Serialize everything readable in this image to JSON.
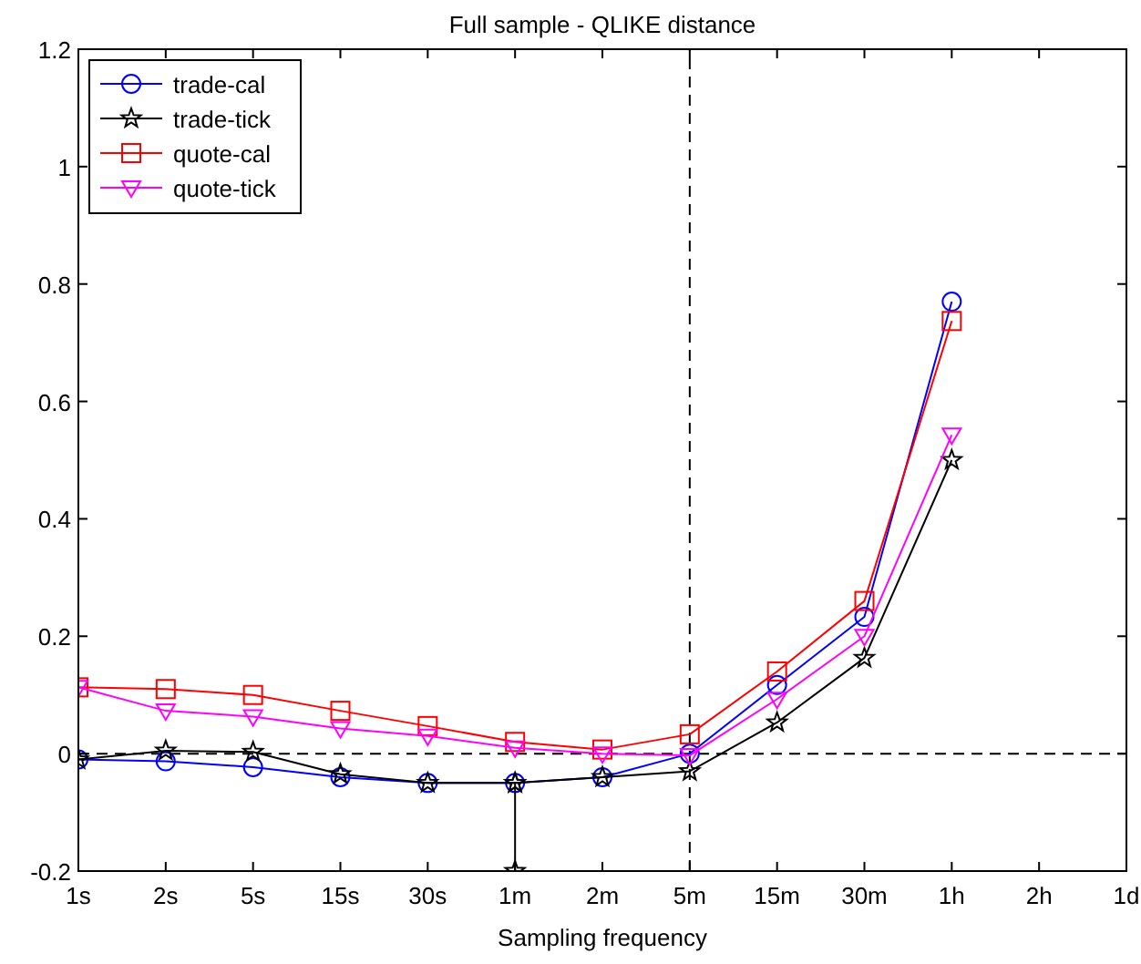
{
  "chart_data": {
    "type": "line",
    "title": "Full sample - QLIKE distance",
    "xlabel": "Sampling frequency",
    "categories": [
      "1s",
      "2s",
      "5s",
      "15s",
      "30s",
      "1m",
      "2m",
      "5m",
      "15m",
      "30m",
      "1h",
      "2h",
      "1d"
    ],
    "ylim": [
      -0.2,
      1.2
    ],
    "yticks": [
      -0.2,
      0,
      0.2,
      0.4,
      0.6,
      0.8,
      1,
      1.2
    ],
    "series": [
      {
        "name": "trade-cal",
        "color": "#0000ff",
        "marker": "circle",
        "values": [
          -0.01,
          -0.013,
          -0.023,
          -0.04,
          -0.05,
          -0.05,
          -0.04,
          0.0,
          0.117,
          0.233,
          0.77,
          null,
          null
        ]
      },
      {
        "name": "trade-tick",
        "color": "#000000",
        "marker": "star",
        "values": [
          -0.01,
          0.005,
          0.003,
          -0.035,
          -0.05,
          -0.05,
          -0.04,
          -0.03,
          0.053,
          0.163,
          0.5,
          null,
          null
        ]
      },
      {
        "color": "#000000",
        "marker": "star",
        "x": [
          "1m",
          "1m"
        ],
        "values": [
          -0.05,
          -0.2
        ]
      },
      {
        "name": "quote-cal",
        "color": "#ff0000",
        "marker": "square",
        "values": [
          0.113,
          0.11,
          0.1,
          0.073,
          0.047,
          0.02,
          0.007,
          0.033,
          0.14,
          0.26,
          0.737,
          null,
          null
        ]
      },
      {
        "name": "quote-tick",
        "color": "#ff00ff",
        "marker": "triangle",
        "values": [
          0.113,
          0.073,
          0.063,
          0.043,
          0.03,
          0.01,
          0.0,
          -0.003,
          0.093,
          0.2,
          0.543,
          null,
          null
        ]
      }
    ],
    "ref_lines": [
      {
        "axis": "y",
        "value": 0,
        "color": "#000000",
        "line_style": "dashed"
      },
      {
        "axis": "x",
        "value": "5m",
        "color": "#000000",
        "line_style": "dashed"
      }
    ],
    "legend": "top left"
  }
}
